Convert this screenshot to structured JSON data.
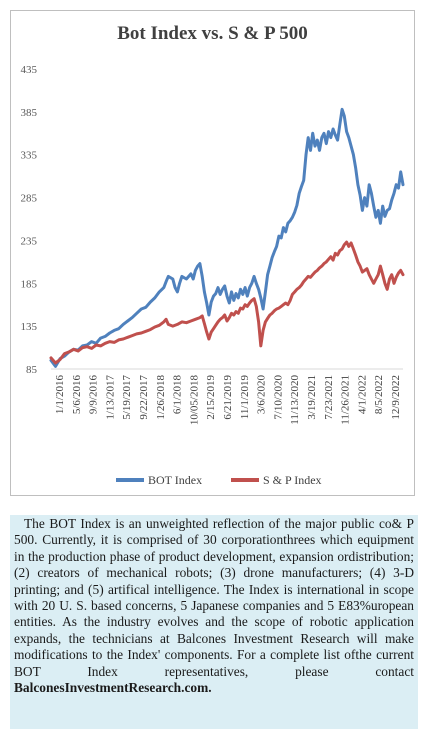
{
  "chart_data": {
    "type": "line",
    "title": "Bot Index vs. S & P 500",
    "ylim": [
      85,
      435
    ],
    "yticks": [
      85,
      135,
      185,
      235,
      285,
      335,
      385,
      435
    ],
    "grid": false,
    "legend": "bottom",
    "x_tick_labels": [
      "1/1/2016",
      "5/6/2016",
      "9/9/2016",
      "1/13/2017",
      "5/19/2017",
      "9/22/2017",
      "1/26/2018",
      "6/1/2018",
      "10/05/2018",
      "2/15/2019",
      "6/21/2019",
      "11/1/2019",
      "3/6/2020",
      "7/10/2020",
      "11/13/2020",
      "3/19/2021",
      "7/23/2021",
      "11/26/2021",
      "4/1/2022",
      "8/5/2022",
      "12/9/2022"
    ],
    "series": [
      {
        "name": "BOT Index",
        "color": "#4f81bd",
        "values": [
          [
            0,
            95
          ],
          [
            2,
            88
          ],
          [
            4,
            97
          ],
          [
            6,
            100
          ],
          [
            8,
            105
          ],
          [
            10,
            108
          ],
          [
            12,
            107
          ],
          [
            14,
            112
          ],
          [
            16,
            113
          ],
          [
            18,
            117
          ],
          [
            20,
            115
          ],
          [
            22,
            121
          ],
          [
            24,
            123
          ],
          [
            26,
            127
          ],
          [
            28,
            130
          ],
          [
            30,
            132
          ],
          [
            32,
            137
          ],
          [
            34,
            141
          ],
          [
            36,
            145
          ],
          [
            38,
            150
          ],
          [
            40,
            155
          ],
          [
            42,
            157
          ],
          [
            44,
            163
          ],
          [
            46,
            168
          ],
          [
            48,
            175
          ],
          [
            50,
            180
          ],
          [
            51,
            187
          ],
          [
            52,
            193
          ],
          [
            54,
            190
          ],
          [
            55,
            180
          ],
          [
            56,
            175
          ],
          [
            57,
            185
          ],
          [
            58,
            193
          ],
          [
            60,
            190
          ],
          [
            62,
            196
          ],
          [
            63,
            190
          ],
          [
            64,
            200
          ],
          [
            65,
            205
          ],
          [
            66,
            208
          ],
          [
            67,
            193
          ],
          [
            68,
            175
          ],
          [
            69,
            162
          ],
          [
            70,
            148
          ],
          [
            71,
            163
          ],
          [
            72,
            170
          ],
          [
            73,
            173
          ],
          [
            74,
            180
          ],
          [
            75,
            172
          ],
          [
            76,
            178
          ],
          [
            77,
            182
          ],
          [
            78,
            170
          ],
          [
            79,
            162
          ],
          [
            80,
            175
          ],
          [
            81,
            165
          ],
          [
            82,
            173
          ],
          [
            83,
            168
          ],
          [
            84,
            178
          ],
          [
            85,
            172
          ],
          [
            86,
            180
          ],
          [
            87,
            170
          ],
          [
            88,
            180
          ],
          [
            89,
            185
          ],
          [
            90,
            193
          ],
          [
            91,
            185
          ],
          [
            92,
            178
          ],
          [
            93,
            168
          ],
          [
            94,
            155
          ],
          [
            95,
            175
          ],
          [
            96,
            195
          ],
          [
            97,
            205
          ],
          [
            98,
            215
          ],
          [
            99,
            222
          ],
          [
            100,
            228
          ],
          [
            101,
            240
          ],
          [
            102,
            238
          ],
          [
            103,
            250
          ],
          [
            104,
            245
          ],
          [
            105,
            255
          ],
          [
            106,
            258
          ],
          [
            107,
            262
          ],
          [
            108,
            268
          ],
          [
            109,
            276
          ],
          [
            110,
            290
          ],
          [
            111,
            298
          ],
          [
            112,
            305
          ],
          [
            113,
            335
          ],
          [
            114,
            355
          ],
          [
            115,
            340
          ],
          [
            116,
            360
          ],
          [
            117,
            345
          ],
          [
            118,
            352
          ],
          [
            119,
            340
          ],
          [
            120,
            355
          ],
          [
            121,
            360
          ],
          [
            122,
            348
          ],
          [
            123,
            362
          ],
          [
            124,
            355
          ],
          [
            125,
            365
          ],
          [
            126,
            358
          ],
          [
            127,
            352
          ],
          [
            128,
            370
          ],
          [
            129,
            388
          ],
          [
            130,
            380
          ],
          [
            131,
            362
          ],
          [
            132,
            355
          ],
          [
            133,
            345
          ],
          [
            134,
            335
          ],
          [
            135,
            320
          ],
          [
            136,
            300
          ],
          [
            137,
            288
          ],
          [
            138,
            270
          ],
          [
            139,
            285
          ],
          [
            140,
            275
          ],
          [
            141,
            300
          ],
          [
            142,
            290
          ],
          [
            143,
            275
          ],
          [
            144,
            262
          ],
          [
            145,
            270
          ],
          [
            146,
            255
          ],
          [
            147,
            275
          ],
          [
            148,
            263
          ],
          [
            149,
            270
          ],
          [
            150,
            272
          ],
          [
            151,
            282
          ],
          [
            152,
            290
          ],
          [
            153,
            300
          ],
          [
            154,
            296
          ],
          [
            155,
            315
          ],
          [
            156,
            300
          ]
        ]
      },
      {
        "name": "S & P Index",
        "color": "#c0504d",
        "values": [
          [
            0,
            98
          ],
          [
            2,
            92
          ],
          [
            4,
            96
          ],
          [
            6,
            103
          ],
          [
            8,
            105
          ],
          [
            10,
            108
          ],
          [
            12,
            106
          ],
          [
            14,
            110
          ],
          [
            16,
            111
          ],
          [
            18,
            109
          ],
          [
            20,
            113
          ],
          [
            22,
            112
          ],
          [
            24,
            115
          ],
          [
            26,
            117
          ],
          [
            28,
            116
          ],
          [
            30,
            119
          ],
          [
            32,
            120
          ],
          [
            34,
            122
          ],
          [
            36,
            124
          ],
          [
            38,
            126
          ],
          [
            40,
            127
          ],
          [
            42,
            129
          ],
          [
            44,
            131
          ],
          [
            46,
            134
          ],
          [
            48,
            136
          ],
          [
            50,
            140
          ],
          [
            51,
            143
          ],
          [
            52,
            137
          ],
          [
            54,
            135
          ],
          [
            56,
            137
          ],
          [
            58,
            140
          ],
          [
            60,
            139
          ],
          [
            62,
            141
          ],
          [
            64,
            143
          ],
          [
            66,
            145
          ],
          [
            67,
            147
          ],
          [
            68,
            138
          ],
          [
            69,
            128
          ],
          [
            70,
            120
          ],
          [
            71,
            128
          ],
          [
            72,
            132
          ],
          [
            73,
            136
          ],
          [
            74,
            140
          ],
          [
            75,
            143
          ],
          [
            76,
            145
          ],
          [
            77,
            148
          ],
          [
            78,
            141
          ],
          [
            79,
            145
          ],
          [
            80,
            150
          ],
          [
            81,
            148
          ],
          [
            82,
            152
          ],
          [
            83,
            150
          ],
          [
            84,
            156
          ],
          [
            85,
            155
          ],
          [
            86,
            160
          ],
          [
            87,
            158
          ],
          [
            88,
            162
          ],
          [
            89,
            165
          ],
          [
            90,
            167
          ],
          [
            91,
            158
          ],
          [
            92,
            140
          ],
          [
            93,
            112
          ],
          [
            94,
            130
          ],
          [
            95,
            140
          ],
          [
            96,
            144
          ],
          [
            97,
            148
          ],
          [
            98,
            150
          ],
          [
            99,
            153
          ],
          [
            100,
            155
          ],
          [
            101,
            156
          ],
          [
            102,
            158
          ],
          [
            103,
            160
          ],
          [
            104,
            162
          ],
          [
            105,
            160
          ],
          [
            106,
            165
          ],
          [
            107,
            172
          ],
          [
            108,
            175
          ],
          [
            109,
            178
          ],
          [
            110,
            180
          ],
          [
            111,
            183
          ],
          [
            112,
            187
          ],
          [
            113,
            190
          ],
          [
            114,
            193
          ],
          [
            115,
            192
          ],
          [
            116,
            195
          ],
          [
            117,
            198
          ],
          [
            118,
            200
          ],
          [
            119,
            203
          ],
          [
            120,
            205
          ],
          [
            121,
            208
          ],
          [
            122,
            210
          ],
          [
            123,
            213
          ],
          [
            124,
            216
          ],
          [
            125,
            212
          ],
          [
            126,
            220
          ],
          [
            127,
            218
          ],
          [
            128,
            223
          ],
          [
            129,
            225
          ],
          [
            130,
            230
          ],
          [
            131,
            233
          ],
          [
            132,
            228
          ],
          [
            133,
            232
          ],
          [
            134,
            225
          ],
          [
            135,
            218
          ],
          [
            136,
            210
          ],
          [
            137,
            205
          ],
          [
            138,
            198
          ],
          [
            139,
            200
          ],
          [
            140,
            202
          ],
          [
            141,
            195
          ],
          [
            142,
            190
          ],
          [
            143,
            185
          ],
          [
            144,
            190
          ],
          [
            145,
            195
          ],
          [
            146,
            205
          ],
          [
            147,
            195
          ],
          [
            148,
            185
          ],
          [
            149,
            178
          ],
          [
            150,
            190
          ],
          [
            151,
            195
          ],
          [
            152,
            185
          ],
          [
            153,
            192
          ],
          [
            154,
            197
          ],
          [
            155,
            200
          ],
          [
            156,
            195
          ]
        ]
      }
    ]
  },
  "description": {
    "text": "The BOT Index is an unweighted reflection of the major public co& P 500. Currently, it is comprised of 30 corporationthrees which  equipment in the production phase of product development, expansion ordistribution; (2) creators of mechanical robots; (3) drone manufacturers; (4) 3-D printing; and (5) artifical intelligence. The Index is international in scope with 20 U. S. based concerns, 5 Japanese companies and 5 E83%uropean entities. As the industry evolves and the scope of robotic application expands, the technicians at Balcones Investment Research will make modifications to the Index' components. For a  complete list ofthe current  BOT  Index  representatives,  please  contact",
    "contact": "BalconesInvestmentResearch.com."
  }
}
